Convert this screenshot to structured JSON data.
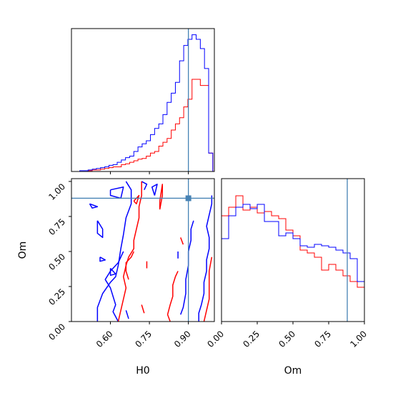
{
  "chart_data": {
    "type": "corner",
    "colors": {
      "red": "#ff0000",
      "blue": "#0000ff",
      "truth": "#4682b4"
    },
    "params": [
      "H0",
      "Om"
    ],
    "truth": {
      "H0": 0.9,
      "Om": 0.88
    },
    "panels": [
      {
        "id": "hist_H0",
        "type": "histogram",
        "xlim": [
          0.45,
          1.0
        ],
        "bin_edges": [
          0.45,
          0.466,
          0.482,
          0.498,
          0.514,
          0.53,
          0.546,
          0.562,
          0.578,
          0.594,
          0.61,
          0.626,
          0.642,
          0.658,
          0.674,
          0.69,
          0.706,
          0.722,
          0.738,
          0.754,
          0.77,
          0.786,
          0.802,
          0.818,
          0.834,
          0.85,
          0.866,
          0.882,
          0.898,
          0.914,
          0.93,
          0.946,
          0.962,
          0.978,
          0.994
        ],
        "series": [
          {
            "name": "",
            "color": "red",
            "values": [
              0,
              0,
              0,
              0,
              0.005,
              0.01,
              0.01,
              0.015,
              0.02,
              0.025,
              0.03,
              0.03,
              0.045,
              0.05,
              0.06,
              0.07,
              0.08,
              0.085,
              0.1,
              0.12,
              0.13,
              0.165,
              0.19,
              0.215,
              0.27,
              0.31,
              0.35,
              0.42,
              0.47,
              0.6,
              0.6,
              0.56,
              0.56,
              0.12
            ]
          },
          {
            "name": "",
            "color": "blue",
            "values": [
              0,
              0,
              0.005,
              0.005,
              0.01,
              0.015,
              0.02,
              0.025,
              0.03,
              0.04,
              0.045,
              0.06,
              0.075,
              0.09,
              0.1,
              0.13,
              0.16,
              0.18,
              0.2,
              0.24,
              0.28,
              0.31,
              0.37,
              0.45,
              0.51,
              0.58,
              0.72,
              0.82,
              0.86,
              0.89,
              0.86,
              0.8,
              0.67,
              0.12
            ]
          }
        ],
        "ylim": [
          0,
          0.93
        ]
      },
      {
        "id": "hist_Om",
        "type": "histogram",
        "xlim": [
          0.0,
          1.0
        ],
        "xticks": [
          "0.00",
          "0.25",
          "0.50",
          "0.75",
          "1.00"
        ],
        "xlabel": "Om",
        "bin_edges": [
          0.0,
          0.05,
          0.1,
          0.15,
          0.2,
          0.25,
          0.3,
          0.35,
          0.4,
          0.45,
          0.5,
          0.55,
          0.6,
          0.65,
          0.7,
          0.75,
          0.8,
          0.85,
          0.9,
          0.95,
          1.0
        ],
        "series": [
          {
            "name": "",
            "color": "red",
            "values": [
              0.74,
              0.8,
              0.88,
              0.78,
              0.8,
              0.76,
              0.77,
              0.74,
              0.72,
              0.64,
              0.6,
              0.5,
              0.48,
              0.45,
              0.36,
              0.4,
              0.36,
              0.32,
              0.28,
              0.24
            ]
          },
          {
            "name": "",
            "color": "blue",
            "values": [
              0.58,
              0.74,
              0.8,
              0.82,
              0.79,
              0.82,
              0.7,
              0.7,
              0.6,
              0.62,
              0.58,
              0.53,
              0.52,
              0.54,
              0.53,
              0.52,
              0.5,
              0.48,
              0.44,
              0.28
            ]
          }
        ],
        "ylim": [
          0,
          1.0
        ]
      },
      {
        "id": "contour_H0_Om",
        "type": "contour",
        "xlim": [
          0.45,
          1.0
        ],
        "ylim": [
          0.0,
          1.02
        ],
        "xticks": [
          "0.60",
          "0.75",
          "0.90"
        ],
        "yticks": [
          "0.00",
          "0.25",
          "0.50",
          "0.75",
          "1.00"
        ],
        "xlabel": "H0",
        "ylabel": "Om",
        "contours": [
          {
            "color": "blue",
            "points": [
              [
                0.55,
                0
              ],
              [
                0.55,
                0.1
              ],
              [
                0.57,
                0.2
              ],
              [
                0.6,
                0.28
              ],
              [
                0.62,
                0.32
              ],
              [
                0.63,
                0.4
              ],
              [
                0.64,
                0.52
              ],
              [
                0.65,
                0.62
              ],
              [
                0.66,
                0.74
              ],
              [
                0.68,
                0.84
              ],
              [
                0.68,
                0.94
              ],
              [
                0.66,
                1.0
              ]
            ]
          },
          {
            "color": "blue",
            "points": [
              [
                0.63,
                0
              ],
              [
                0.61,
                0.07
              ],
              [
                0.62,
                0.12
              ],
              [
                0.6,
                0.24
              ],
              [
                0.58,
                0.3
              ],
              [
                0.6,
                0.36
              ],
              [
                0.63,
                0.42
              ],
              [
                0.65,
                0.5
              ]
            ]
          },
          {
            "color": "blue",
            "points": [
              [
                0.73,
                0.94
              ],
              [
                0.74,
                0.98
              ],
              [
                0.72,
                1.0
              ]
            ]
          },
          {
            "color": "red",
            "points": [
              [
                0.63,
                0
              ],
              [
                0.64,
                0.08
              ],
              [
                0.65,
                0.16
              ],
              [
                0.66,
                0.24
              ],
              [
                0.65,
                0.32
              ],
              [
                0.66,
                0.4
              ],
              [
                0.67,
                0.46
              ],
              [
                0.69,
                0.52
              ],
              [
                0.69,
                0.58
              ],
              [
                0.7,
                0.66
              ],
              [
                0.71,
                0.74
              ],
              [
                0.71,
                0.82
              ],
              [
                0.72,
                0.9
              ],
              [
                0.72,
                1.0
              ]
            ]
          },
          {
            "color": "red",
            "points": [
              [
                0.67,
                0.3
              ],
              [
                0.66,
                0.36
              ],
              [
                0.66,
                0.42
              ],
              [
                0.68,
                0.46
              ],
              [
                0.69,
                0.5
              ]
            ]
          },
          {
            "color": "red",
            "points": [
              [
                0.74,
                0.38
              ],
              [
                0.74,
                0.43
              ]
            ]
          },
          {
            "color": "red",
            "points": [
              [
                0.83,
                0
              ],
              [
                0.82,
                0.05
              ],
              [
                0.83,
                0.12
              ],
              [
                0.84,
                0.18
              ],
              [
                0.84,
                0.26
              ],
              [
                0.85,
                0.32
              ],
              [
                0.86,
                0.36
              ]
            ]
          },
          {
            "color": "blue",
            "points": [
              [
                0.87,
                0.05
              ],
              [
                0.88,
                0.1
              ],
              [
                0.89,
                0.2
              ],
              [
                0.89,
                0.3
              ],
              [
                0.9,
                0.4
              ],
              [
                0.9,
                0.5
              ],
              [
                0.91,
                0.58
              ],
              [
                0.91,
                0.66
              ],
              [
                0.92,
                0.72
              ]
            ]
          },
          {
            "color": "blue",
            "points": [
              [
                0.94,
                0
              ],
              [
                0.94,
                0.06
              ],
              [
                0.95,
                0.12
              ],
              [
                0.96,
                0.2
              ],
              [
                0.96,
                0.28
              ],
              [
                0.97,
                0.36
              ],
              [
                0.97,
                0.44
              ],
              [
                0.98,
                0.52
              ],
              [
                0.98,
                0.6
              ],
              [
                0.97,
                0.68
              ],
              [
                0.98,
                0.76
              ],
              [
                0.99,
                0.84
              ],
              [
                0.99,
                0.9
              ]
            ]
          },
          {
            "color": "red",
            "points": [
              [
                0.96,
                0
              ],
              [
                0.97,
                0.08
              ],
              [
                0.98,
                0.16
              ],
              [
                0.98,
                0.26
              ],
              [
                0.98,
                0.36
              ],
              [
                0.99,
                0.46
              ]
            ]
          },
          {
            "color": "blue",
            "points": [
              [
                0.86,
                0.45
              ],
              [
                0.86,
                0.5
              ]
            ]
          },
          {
            "color": "red",
            "points": [
              [
                0.88,
                0.55
              ],
              [
                0.87,
                0.6
              ]
            ]
          },
          {
            "color": "blue",
            "points": [
              [
                0.55,
                0.72
              ],
              [
                0.57,
                0.66
              ],
              [
                0.57,
                0.6
              ],
              [
                0.55,
                0.63
              ],
              [
                0.55,
                0.72
              ]
            ]
          },
          {
            "color": "blue",
            "points": [
              [
                0.52,
                0.84
              ],
              [
                0.55,
                0.82
              ],
              [
                0.53,
                0.81
              ],
              [
                0.52,
                0.84
              ]
            ]
          },
          {
            "color": "blue",
            "points": [
              [
                0.56,
                0.46
              ],
              [
                0.58,
                0.44
              ],
              [
                0.56,
                0.43
              ],
              [
                0.56,
                0.46
              ]
            ]
          },
          {
            "color": "blue",
            "points": [
              [
                0.6,
                0.38
              ],
              [
                0.62,
                0.34
              ],
              [
                0.6,
                0.33
              ],
              [
                0.6,
                0.38
              ]
            ]
          },
          {
            "color": "blue",
            "points": [
              [
                0.6,
                0.94
              ],
              [
                0.65,
                0.96
              ],
              [
                0.64,
                0.88
              ],
              [
                0.6,
                0.9
              ],
              [
                0.6,
                0.94
              ]
            ]
          },
          {
            "color": "red",
            "points": [
              [
                0.69,
                0.86
              ],
              [
                0.71,
                0.9
              ],
              [
                0.7,
                0.84
              ],
              [
                0.69,
                0.86
              ]
            ]
          },
          {
            "color": "red",
            "points": [
              [
                0.79,
                0.8
              ],
              [
                0.8,
                0.9
              ],
              [
                0.8,
                0.98
              ],
              [
                0.79,
                0.86
              ],
              [
                0.79,
                0.8
              ]
            ]
          },
          {
            "color": "blue",
            "points": [
              [
                0.77,
                0.9
              ],
              [
                0.78,
                0.98
              ],
              [
                0.76,
                0.96
              ],
              [
                0.77,
                0.9
              ]
            ]
          },
          {
            "color": "red",
            "points": [
              [
                0.73,
                0.06
              ],
              [
                0.72,
                0.12
              ]
            ]
          },
          {
            "color": "blue",
            "points": [
              [
                0.67,
                0.02
              ],
              [
                0.66,
                0.08
              ]
            ]
          }
        ]
      }
    ]
  }
}
